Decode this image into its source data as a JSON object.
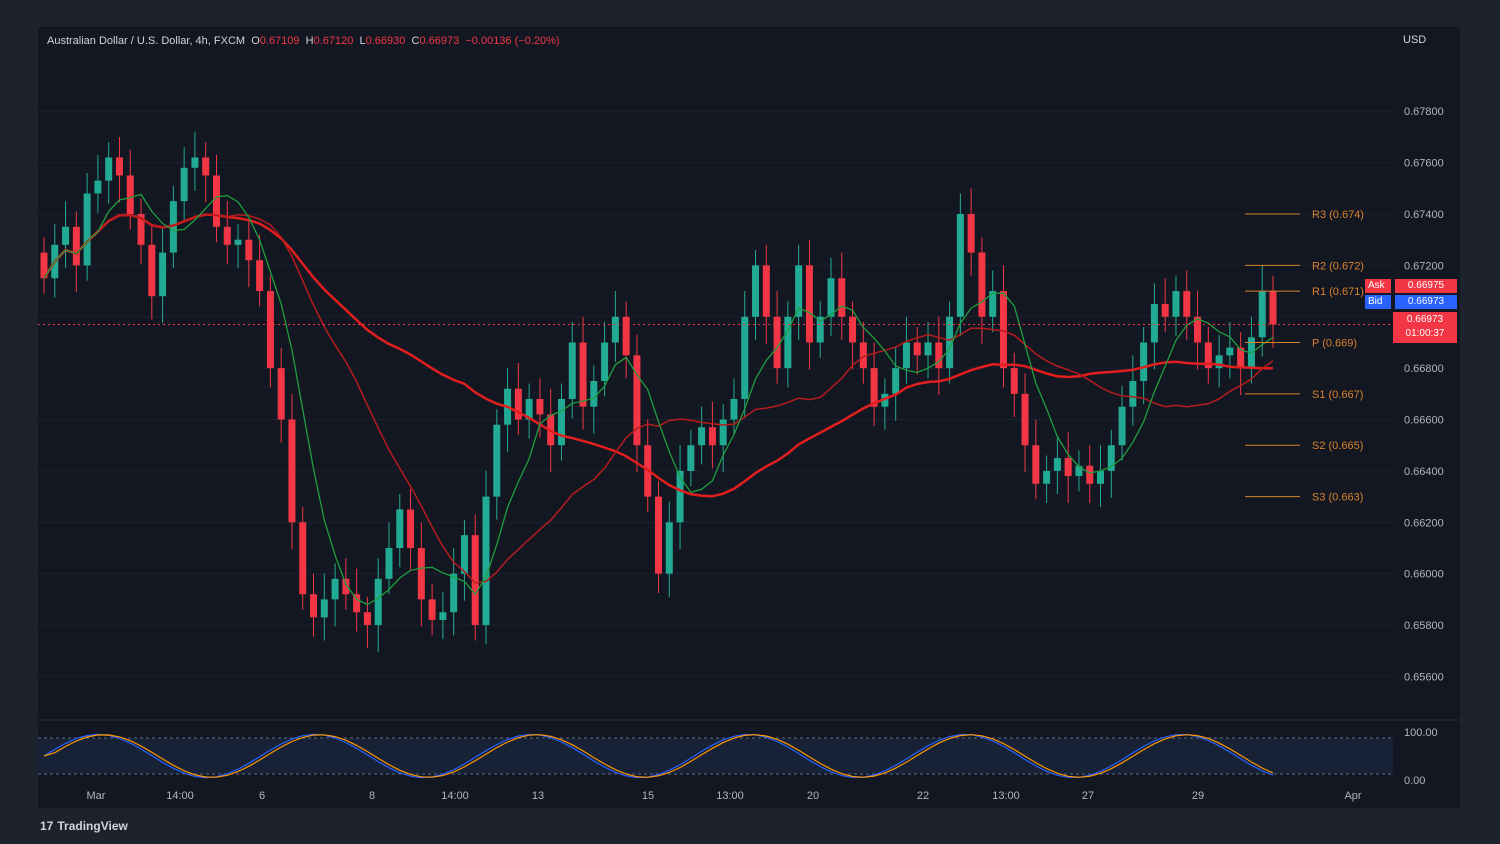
{
  "header": {
    "symbol": "Australian Dollar / U.S. Dollar, 4h, FXCM",
    "o_label": "O",
    "o_value": "0.67109",
    "h_label": "H",
    "h_value": "0.67120",
    "l_label": "L",
    "l_value": "0.66930",
    "c_label": "C",
    "c_value": "0.66973",
    "change": "−0.00136 (−0.20%)"
  },
  "currency": "USD",
  "brand": "TradingView",
  "brand_logo": "17",
  "price_tags": {
    "ask_label": "Ask",
    "ask_value": "0.66975",
    "bid_label": "Bid",
    "bid_value": "0.66973",
    "last_value": "0.66973",
    "countdown": "01:00:37"
  },
  "colors": {
    "up": "#22ab94",
    "down": "#f23645",
    "sma_red": "#e31e1e",
    "ema_green": "#1f9e3f",
    "pivot": "#d9822b",
    "trail": "#8cd653",
    "background": "#131722",
    "axis_text": "#b2b5be"
  },
  "chart_data": {
    "type": "candlestick",
    "ylim": [
      0.6545,
      0.6805
    ],
    "y_ticks": [
      "0.67800",
      "0.67600",
      "0.67400",
      "0.67200",
      "0.67000",
      "0.66800",
      "0.66600",
      "0.66400",
      "0.66200",
      "0.66000",
      "0.65800",
      "0.65600"
    ],
    "x_ticks": [
      "Mar",
      "14:00",
      "6",
      "8",
      "14:00",
      "13",
      "15",
      "13:00",
      "20",
      "22",
      "13:00",
      "27",
      "29",
      "Apr"
    ],
    "pivots": [
      {
        "label": "R3 (0.674)",
        "value": 0.674
      },
      {
        "label": "R2 (0.672)",
        "value": 0.672
      },
      {
        "label": "R1 (0.671)",
        "value": 0.671
      },
      {
        "label": "P (0.669)",
        "value": 0.669
      },
      {
        "label": "S1 (0.667)",
        "value": 0.667
      },
      {
        "label": "S2 (0.665)",
        "value": 0.665
      },
      {
        "label": "S3 (0.663)",
        "value": 0.663
      }
    ],
    "closes": [
      0.6715,
      0.6728,
      0.6735,
      0.672,
      0.6748,
      0.6753,
      0.6762,
      0.6755,
      0.674,
      0.6728,
      0.6708,
      0.6725,
      0.6745,
      0.6758,
      0.6762,
      0.6755,
      0.6735,
      0.6728,
      0.673,
      0.6722,
      0.671,
      0.668,
      0.666,
      0.662,
      0.6592,
      0.6583,
      0.659,
      0.6598,
      0.6592,
      0.6585,
      0.658,
      0.6598,
      0.661,
      0.6625,
      0.661,
      0.659,
      0.6582,
      0.6585,
      0.66,
      0.6615,
      0.658,
      0.663,
      0.6658,
      0.6672,
      0.666,
      0.6668,
      0.6662,
      0.665,
      0.6668,
      0.669,
      0.6665,
      0.6675,
      0.669,
      0.67,
      0.6685,
      0.665,
      0.663,
      0.66,
      0.662,
      0.664,
      0.665,
      0.6657,
      0.665,
      0.666,
      0.6668,
      0.67,
      0.672,
      0.67,
      0.668,
      0.67,
      0.672,
      0.669,
      0.67,
      0.6715,
      0.67,
      0.669,
      0.668,
      0.6665,
      0.667,
      0.668,
      0.669,
      0.6685,
      0.669,
      0.668,
      0.67,
      0.674,
      0.6725,
      0.67,
      0.671,
      0.668,
      0.667,
      0.665,
      0.6635,
      0.664,
      0.6645,
      0.6638,
      0.6642,
      0.6635,
      0.664,
      0.665,
      0.6665,
      0.6675,
      0.669,
      0.6705,
      0.67,
      0.671,
      0.67,
      0.669,
      0.668,
      0.6685,
      0.6688,
      0.668,
      0.6692,
      0.671,
      0.6697
    ]
  },
  "oscillator": {
    "ticks": [
      "100.00",
      "0.00"
    ]
  }
}
